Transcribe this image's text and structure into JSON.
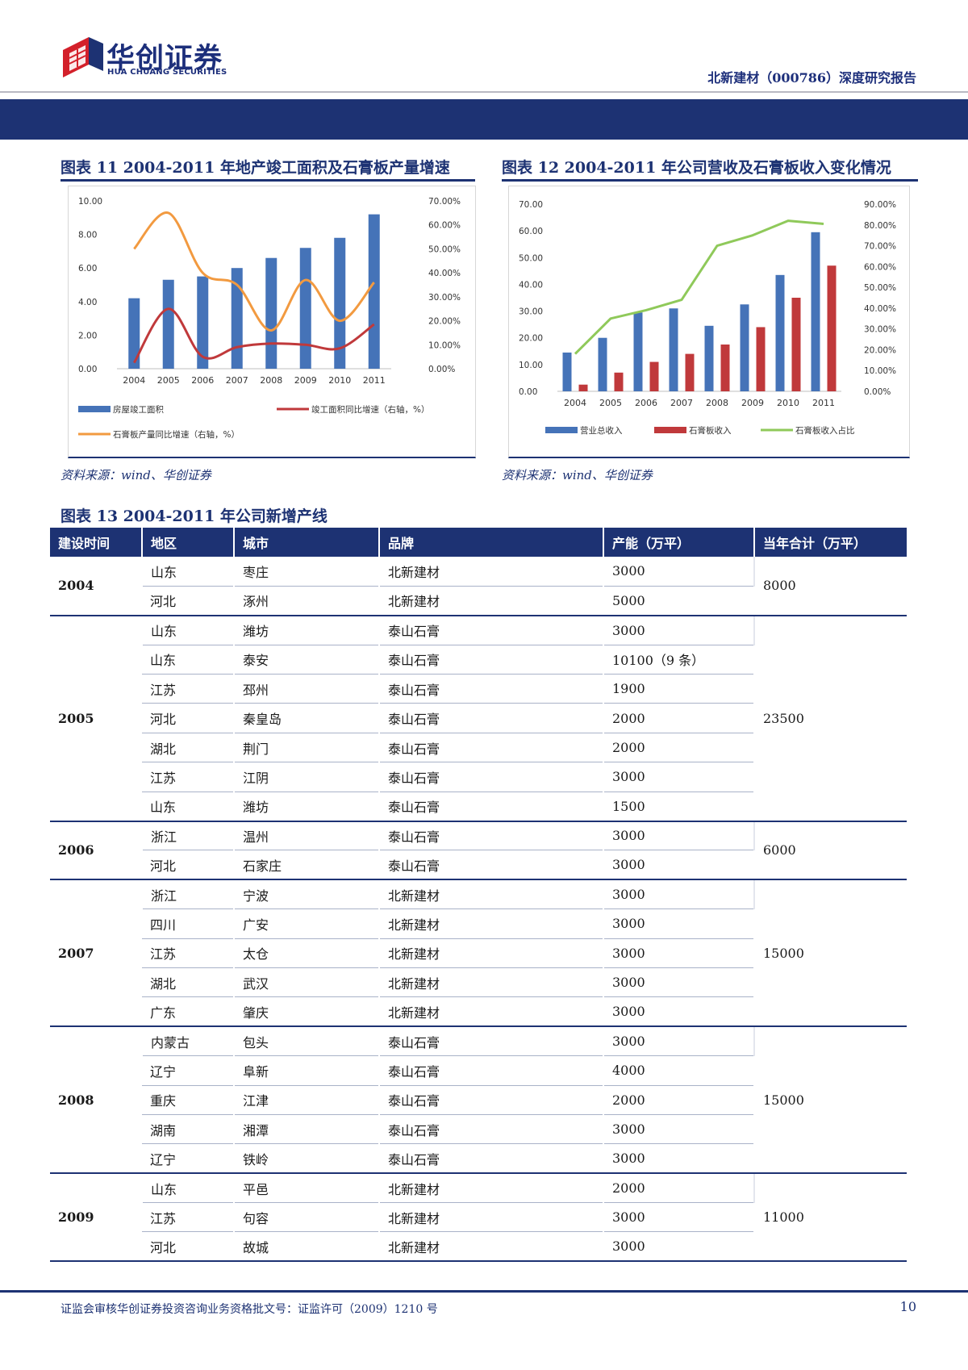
{
  "header": {
    "logo_cn": "华创证券",
    "logo_en": "HUA CHUANG SECURITIES",
    "report_title": "北新建材（000786）深度研究报告"
  },
  "figures": {
    "fig11": {
      "title": "图表 11   2004-2011 年地产竣工面积及石膏板产量增速",
      "source": "资料来源：wind、华创证券"
    },
    "fig12": {
      "title": "图表 12   2004-2011 年公司营收及石膏板收入变化情况",
      "source": "资料来源：wind、华创证券"
    }
  },
  "chart_data": [
    {
      "type": "bar",
      "categories": [
        "2004",
        "2005",
        "2006",
        "2007",
        "2008",
        "2009",
        "2010",
        "2011"
      ],
      "series": [
        {
          "name": "房屋竣工面积",
          "type": "bar",
          "axis": "left",
          "values": [
            4.2,
            5.3,
            5.5,
            6.0,
            6.6,
            7.2,
            7.8,
            9.2
          ]
        },
        {
          "name": "竣工面积同比增速（右轴，%）",
          "type": "line",
          "axis": "right",
          "values": [
            2.5,
            25.0,
            5.0,
            9.0,
            10.5,
            10.0,
            8.5,
            18.5
          ]
        },
        {
          "name": "石膏板产量同比增速（右轴，%）",
          "type": "line",
          "axis": "right",
          "values": [
            50.0,
            65.0,
            40.0,
            35.0,
            16.0,
            37.0,
            20.0,
            36.0
          ]
        }
      ],
      "y_left": {
        "min": 0,
        "max": 10,
        "ticks": [
          "0.00",
          "2.00",
          "4.00",
          "6.00",
          "8.00",
          "10.00"
        ]
      },
      "y_right": {
        "min": 0,
        "max": 70,
        "ticks": [
          "0.00%",
          "10.00%",
          "20.00%",
          "30.00%",
          "40.00%",
          "50.00%",
          "60.00%",
          "70.00%"
        ]
      },
      "colors": {
        "bar": "#4573b8",
        "line1": "#c0393b",
        "line2": "#f29a40"
      },
      "legend": "bottom"
    },
    {
      "type": "bar",
      "categories": [
        "2004",
        "2005",
        "2006",
        "2007",
        "2008",
        "2009",
        "2010",
        "2011"
      ],
      "series": [
        {
          "name": "营业总收入",
          "type": "bar",
          "axis": "left",
          "values": [
            14.5,
            20.0,
            29.5,
            31.0,
            24.5,
            32.5,
            43.5,
            59.5
          ]
        },
        {
          "name": "石膏板收入",
          "type": "bar",
          "axis": "left",
          "values": [
            2.5,
            7.0,
            11.0,
            14.0,
            17.5,
            24.0,
            35.0,
            47.0
          ]
        },
        {
          "name": "石膏板收入占比",
          "type": "line",
          "axis": "right",
          "values": [
            18.0,
            35.0,
            39.0,
            44.0,
            70.0,
            75.0,
            82.0,
            80.5
          ]
        }
      ],
      "y_left": {
        "min": 0,
        "max": 70,
        "ticks": [
          "0.00",
          "10.00",
          "20.00",
          "30.00",
          "40.00",
          "50.00",
          "60.00",
          "70.00"
        ]
      },
      "y_right": {
        "min": 0,
        "max": 90,
        "ticks": [
          "0.00%",
          "10.00%",
          "20.00%",
          "30.00%",
          "40.00%",
          "50.00%",
          "60.00%",
          "70.00%",
          "80.00%",
          "90.00%"
        ]
      },
      "colors": {
        "bar1": "#4573b8",
        "bar2": "#c0393b",
        "line": "#8fc95a"
      },
      "legend": "bottom"
    }
  ],
  "table": {
    "title": "图表 13   2004-2011 年公司新增产线",
    "headers": [
      "建设时间",
      "地区",
      "城市",
      "品牌",
      "产能（万平）",
      "当年合计（万平）"
    ],
    "groups": [
      {
        "year": "2004",
        "total": "8000",
        "rows": [
          {
            "region": "山东",
            "city": "枣庄",
            "brand": "北新建材",
            "capacity": "3000"
          },
          {
            "region": "河北",
            "city": "涿州",
            "brand": "北新建材",
            "capacity": "5000"
          }
        ]
      },
      {
        "year": "2005",
        "total": "23500",
        "rows": [
          {
            "region": "山东",
            "city": "潍坊",
            "brand": "泰山石膏",
            "capacity": "3000"
          },
          {
            "region": "山东",
            "city": "泰安",
            "brand": "泰山石膏",
            "capacity": "10100（9 条）"
          },
          {
            "region": "江苏",
            "city": "邳州",
            "brand": "泰山石膏",
            "capacity": "1900"
          },
          {
            "region": "河北",
            "city": "秦皇岛",
            "brand": "泰山石膏",
            "capacity": "2000"
          },
          {
            "region": "湖北",
            "city": "荆门",
            "brand": "泰山石膏",
            "capacity": "2000"
          },
          {
            "region": "江苏",
            "city": "江阴",
            "brand": "泰山石膏",
            "capacity": "3000"
          },
          {
            "region": "山东",
            "city": "潍坊",
            "brand": "泰山石膏",
            "capacity": "1500"
          }
        ]
      },
      {
        "year": "2006",
        "total": "6000",
        "rows": [
          {
            "region": "浙江",
            "city": "温州",
            "brand": "泰山石膏",
            "capacity": "3000"
          },
          {
            "region": "河北",
            "city": "石家庄",
            "brand": "泰山石膏",
            "capacity": "3000"
          }
        ]
      },
      {
        "year": "2007",
        "total": "15000",
        "rows": [
          {
            "region": "浙江",
            "city": "宁波",
            "brand": "北新建材",
            "capacity": "3000"
          },
          {
            "region": "四川",
            "city": "广安",
            "brand": "北新建材",
            "capacity": "3000"
          },
          {
            "region": "江苏",
            "city": "太仓",
            "brand": "北新建材",
            "capacity": "3000"
          },
          {
            "region": "湖北",
            "city": "武汉",
            "brand": "北新建材",
            "capacity": "3000"
          },
          {
            "region": "广东",
            "city": "肇庆",
            "brand": "北新建材",
            "capacity": "3000"
          }
        ]
      },
      {
        "year": "2008",
        "total": "15000",
        "rows": [
          {
            "region": "内蒙古",
            "city": "包头",
            "brand": "泰山石膏",
            "capacity": "3000"
          },
          {
            "region": "辽宁",
            "city": "阜新",
            "brand": "泰山石膏",
            "capacity": "4000"
          },
          {
            "region": "重庆",
            "city": "江津",
            "brand": "泰山石膏",
            "capacity": "2000"
          },
          {
            "region": "湖南",
            "city": "湘潭",
            "brand": "泰山石膏",
            "capacity": "3000"
          },
          {
            "region": "辽宁",
            "city": "铁岭",
            "brand": "泰山石膏",
            "capacity": "3000"
          }
        ]
      },
      {
        "year": "2009",
        "total": "11000",
        "rows": [
          {
            "region": "山东",
            "city": "平邑",
            "brand": "北新建材",
            "capacity": "2000"
          },
          {
            "region": "江苏",
            "city": "句容",
            "brand": "北新建材",
            "capacity": "3000"
          },
          {
            "region": "河北",
            "city": "故城",
            "brand": "北新建材",
            "capacity": "3000"
          }
        ]
      }
    ]
  },
  "footer": {
    "text": "证监会审核华创证券投资咨询业务资格批文号：证监许可（2009）1210 号",
    "page": "10"
  },
  "colors": {
    "brand_navy": "#1d3273",
    "logo_red": "#d3202a"
  }
}
